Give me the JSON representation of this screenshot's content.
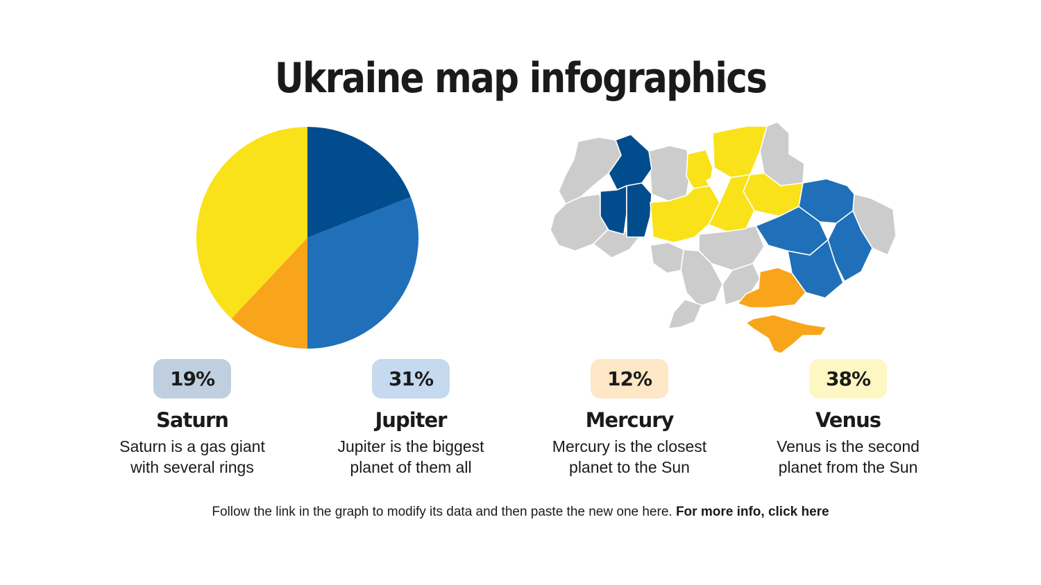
{
  "title": "Ukraine map infographics",
  "colors": {
    "saturn": "#004c8c",
    "jupiter": "#1f70b8",
    "mercury": "#f8a51c",
    "venus": "#f9e21a",
    "grey_region": "#cccccc"
  },
  "chart_data": {
    "type": "pie",
    "slices": [
      {
        "label": "Saturn",
        "value": 19,
        "color": "#004c8c"
      },
      {
        "label": "Jupiter",
        "value": 31,
        "color": "#1f70b8"
      },
      {
        "label": "Mercury",
        "value": 12,
        "color": "#f8a51c"
      },
      {
        "label": "Venus",
        "value": 38,
        "color": "#f9e21a"
      }
    ]
  },
  "cards": [
    {
      "percent": "19%",
      "name": "Saturn",
      "desc1": "Saturn is a gas giant",
      "desc2": "with several rings",
      "badge_bg": "#bfcfe0"
    },
    {
      "percent": "31%",
      "name": "Jupiter",
      "desc1": "Jupiter is the biggest",
      "desc2": "planet of them all",
      "badge_bg": "#c5d9ef"
    },
    {
      "percent": "12%",
      "name": "Mercury",
      "desc1": "Mercury is the closest",
      "desc2": "planet to the Sun",
      "badge_bg": "#fde7c6"
    },
    {
      "percent": "38%",
      "name": "Venus",
      "desc1": "Venus is the second",
      "desc2": "planet from the Sun",
      "badge_bg": "#fdf7c4"
    }
  ],
  "footer": {
    "text": "Follow the link in the graph to modify its data and then paste the new one here.",
    "link": "For more info, click here"
  }
}
